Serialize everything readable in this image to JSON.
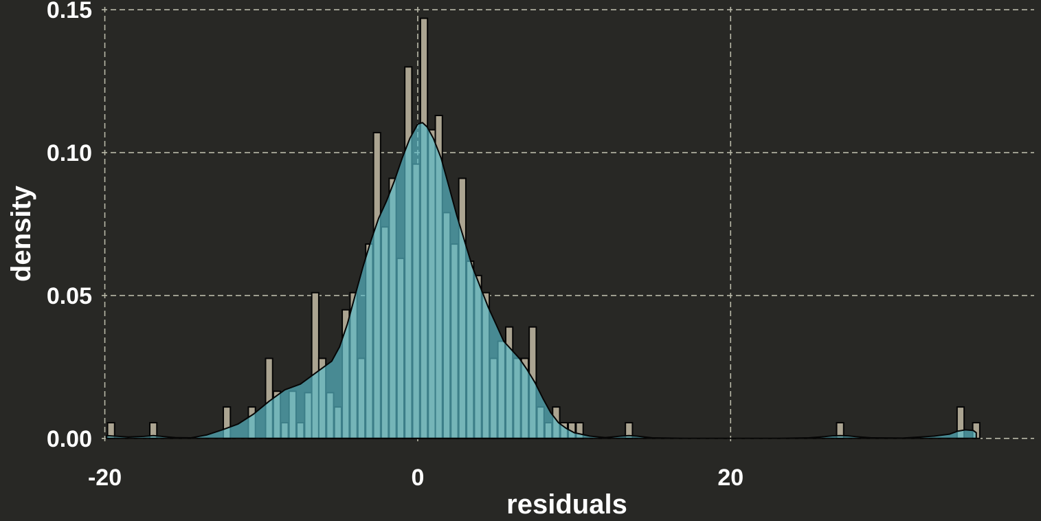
{
  "chart_data": {
    "type": "histogram-density",
    "xlabel": "residuals",
    "ylabel": "density",
    "xlim": [
      -20.2,
      39.4
    ],
    "ylim": [
      -0.001,
      0.151
    ],
    "x_ticks": [
      -20,
      0,
      20
    ],
    "x_tick_labels": [
      "-20",
      "0",
      "20"
    ],
    "y_ticks": [
      0,
      0.05,
      0.1,
      0.15
    ],
    "y_tick_labels": [
      "0.00",
      "0.05",
      "0.10",
      "0.15"
    ],
    "grid": true,
    "bin_width": 0.45,
    "bins": [
      {
        "x": -19.6,
        "density": 0.0055
      },
      {
        "x": -16.9,
        "density": 0.0055
      },
      {
        "x": -12.2,
        "density": 0.011
      },
      {
        "x": -10.6,
        "density": 0.011
      },
      {
        "x": -9.5,
        "density": 0.028
      },
      {
        "x": -9.0,
        "density": 0.0165
      },
      {
        "x": -8.5,
        "density": 0.0055
      },
      {
        "x": -8.0,
        "density": 0.0165
      },
      {
        "x": -7.5,
        "density": 0.0055
      },
      {
        "x": -7.0,
        "density": 0.016
      },
      {
        "x": -6.55,
        "density": 0.051
      },
      {
        "x": -6.1,
        "density": 0.028
      },
      {
        "x": -5.6,
        "density": 0.016
      },
      {
        "x": -5.1,
        "density": 0.011
      },
      {
        "x": -4.6,
        "density": 0.045
      },
      {
        "x": -4.1,
        "density": 0.051
      },
      {
        "x": -3.6,
        "density": 0.028
      },
      {
        "x": -3.1,
        "density": 0.068
      },
      {
        "x": -2.6,
        "density": 0.107
      },
      {
        "x": -2.1,
        "density": 0.074
      },
      {
        "x": -1.6,
        "density": 0.091
      },
      {
        "x": -1.1,
        "density": 0.063
      },
      {
        "x": -0.6,
        "density": 0.13
      },
      {
        "x": -0.1,
        "density": 0.096
      },
      {
        "x": 0.4,
        "density": 0.147
      },
      {
        "x": 0.9,
        "density": 0.108
      },
      {
        "x": 1.35,
        "density": 0.113
      },
      {
        "x": 1.85,
        "density": 0.079
      },
      {
        "x": 2.35,
        "density": 0.068
      },
      {
        "x": 2.85,
        "density": 0.091
      },
      {
        "x": 3.35,
        "density": 0.062
      },
      {
        "x": 3.85,
        "density": 0.057
      },
      {
        "x": 4.35,
        "density": 0.051
      },
      {
        "x": 4.85,
        "density": 0.028
      },
      {
        "x": 5.35,
        "density": 0.034
      },
      {
        "x": 5.85,
        "density": 0.039
      },
      {
        "x": 6.35,
        "density": 0.028
      },
      {
        "x": 6.85,
        "density": 0.028
      },
      {
        "x": 7.35,
        "density": 0.039
      },
      {
        "x": 7.85,
        "density": 0.011
      },
      {
        "x": 8.35,
        "density": 0.0055
      },
      {
        "x": 8.85,
        "density": 0.011
      },
      {
        "x": 9.35,
        "density": 0.0055
      },
      {
        "x": 9.85,
        "density": 0.0055
      },
      {
        "x": 10.35,
        "density": 0.0055
      },
      {
        "x": 13.5,
        "density": 0.0055
      },
      {
        "x": 27.0,
        "density": 0.0055
      },
      {
        "x": 34.7,
        "density": 0.011
      },
      {
        "x": 35.7,
        "density": 0.0055
      }
    ],
    "density_curve": {
      "x": [
        -19.9,
        -18.5,
        -17.5,
        -16.9,
        -16.2,
        -15.5,
        -14.5,
        -13.5,
        -12.5,
        -11.5,
        -10.5,
        -9.5,
        -8.5,
        -7.5,
        -6.5,
        -5.5,
        -5.0,
        -4.5,
        -4.0,
        -3.5,
        -3.0,
        -2.5,
        -2.0,
        -1.5,
        -1.0,
        -0.5,
        0.0,
        0.3,
        0.6,
        1.0,
        1.5,
        2.0,
        2.5,
        3.0,
        3.5,
        4.0,
        4.5,
        5.0,
        5.5,
        6.0,
        6.5,
        7.0,
        7.5,
        8.0,
        8.5,
        9.0,
        9.5,
        10.0,
        11.0,
        12.0,
        13.0,
        13.5,
        14.0,
        15.0,
        17.0,
        20.0,
        23.0,
        25.0,
        26.0,
        26.5,
        27.0,
        27.5,
        28.0,
        29.0,
        31.0,
        33.0,
        34.0,
        34.5,
        35.0,
        35.5,
        35.7
      ],
      "y": [
        0.001,
        0.0005,
        0.0007,
        0.001,
        0.0006,
        0.0003,
        0.0002,
        0.0012,
        0.003,
        0.005,
        0.0085,
        0.013,
        0.017,
        0.019,
        0.023,
        0.027,
        0.032,
        0.04,
        0.05,
        0.06,
        0.069,
        0.077,
        0.083,
        0.09,
        0.098,
        0.105,
        0.11,
        0.1105,
        0.109,
        0.105,
        0.098,
        0.088,
        0.078,
        0.069,
        0.06,
        0.053,
        0.046,
        0.04,
        0.034,
        0.031,
        0.028,
        0.024,
        0.0195,
        0.014,
        0.009,
        0.0055,
        0.0035,
        0.002,
        0.0008,
        0.0003,
        0.0008,
        0.001,
        0.0008,
        0.0002,
        0.0,
        0.0,
        0.0,
        0.0002,
        0.0006,
        0.0009,
        0.001,
        0.0009,
        0.0006,
        0.0002,
        0.0001,
        0.0008,
        0.0015,
        0.0025,
        0.003,
        0.0028,
        0.002
      ]
    }
  },
  "colors": {
    "background": "#282825",
    "bar_fill": "#aba491",
    "density_fill": "#5abecd",
    "grid": "#b9b9a8",
    "text": "#ffffff"
  }
}
